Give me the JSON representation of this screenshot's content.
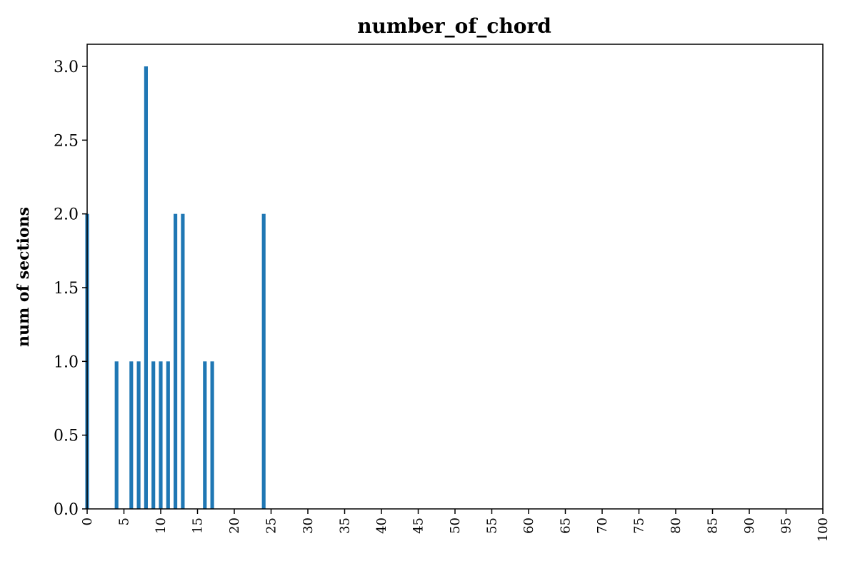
{
  "chart_data": {
    "type": "bar",
    "title": "number_of_chord",
    "xlabel": "",
    "ylabel": "num of sections",
    "xlim": [
      0,
      100
    ],
    "ylim": [
      0,
      3.15
    ],
    "x_ticks": [
      0,
      5,
      10,
      15,
      20,
      25,
      30,
      35,
      40,
      45,
      50,
      55,
      60,
      65,
      70,
      75,
      80,
      85,
      90,
      95,
      100
    ],
    "y_ticks": [
      0.0,
      0.5,
      1.0,
      1.5,
      2.0,
      2.5,
      3.0
    ],
    "y_tick_labels": [
      "0.0",
      "0.5",
      "1.0",
      "1.5",
      "2.0",
      "2.5",
      "3.0"
    ],
    "grid": false,
    "bar_color": "#1f77b4",
    "x": [
      0,
      4,
      6,
      7,
      8,
      9,
      10,
      11,
      12,
      13,
      16,
      17,
      24
    ],
    "values": [
      2,
      1,
      1,
      1,
      3,
      1,
      1,
      1,
      2,
      2,
      1,
      1,
      2
    ]
  }
}
